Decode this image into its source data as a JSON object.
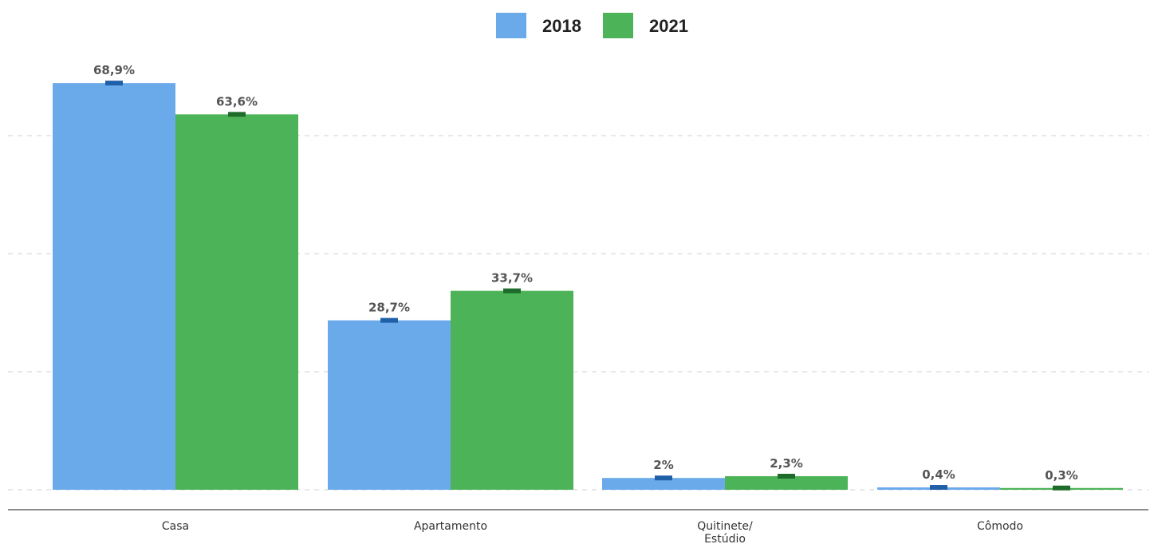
{
  "chart_data": {
    "type": "bar",
    "title": "",
    "xlabel": "",
    "ylabel": "",
    "categories": [
      "Casa",
      "Apartamento",
      "Quitinete/ Estúdio",
      "Cômodo"
    ],
    "series": [
      {
        "name": "2018",
        "color": "#6aaaea",
        "marker_color": "#1f5fa8",
        "values": [
          68.9,
          28.7,
          2,
          0.4
        ],
        "labels": [
          "68,9%",
          "28,7%",
          "2%",
          "0,4%"
        ]
      },
      {
        "name": "2021",
        "color": "#4cb358",
        "marker_color": "#1f6b2a",
        "values": [
          63.6,
          33.7,
          2.3,
          0.3
        ],
        "labels": [
          "63,6%",
          "33,7%",
          "2,3%",
          "0,3%"
        ]
      }
    ],
    "ylim": [
      0,
      80
    ],
    "gridlines": [
      20,
      40,
      60
    ],
    "grid": true,
    "legend_position": "top-center"
  }
}
